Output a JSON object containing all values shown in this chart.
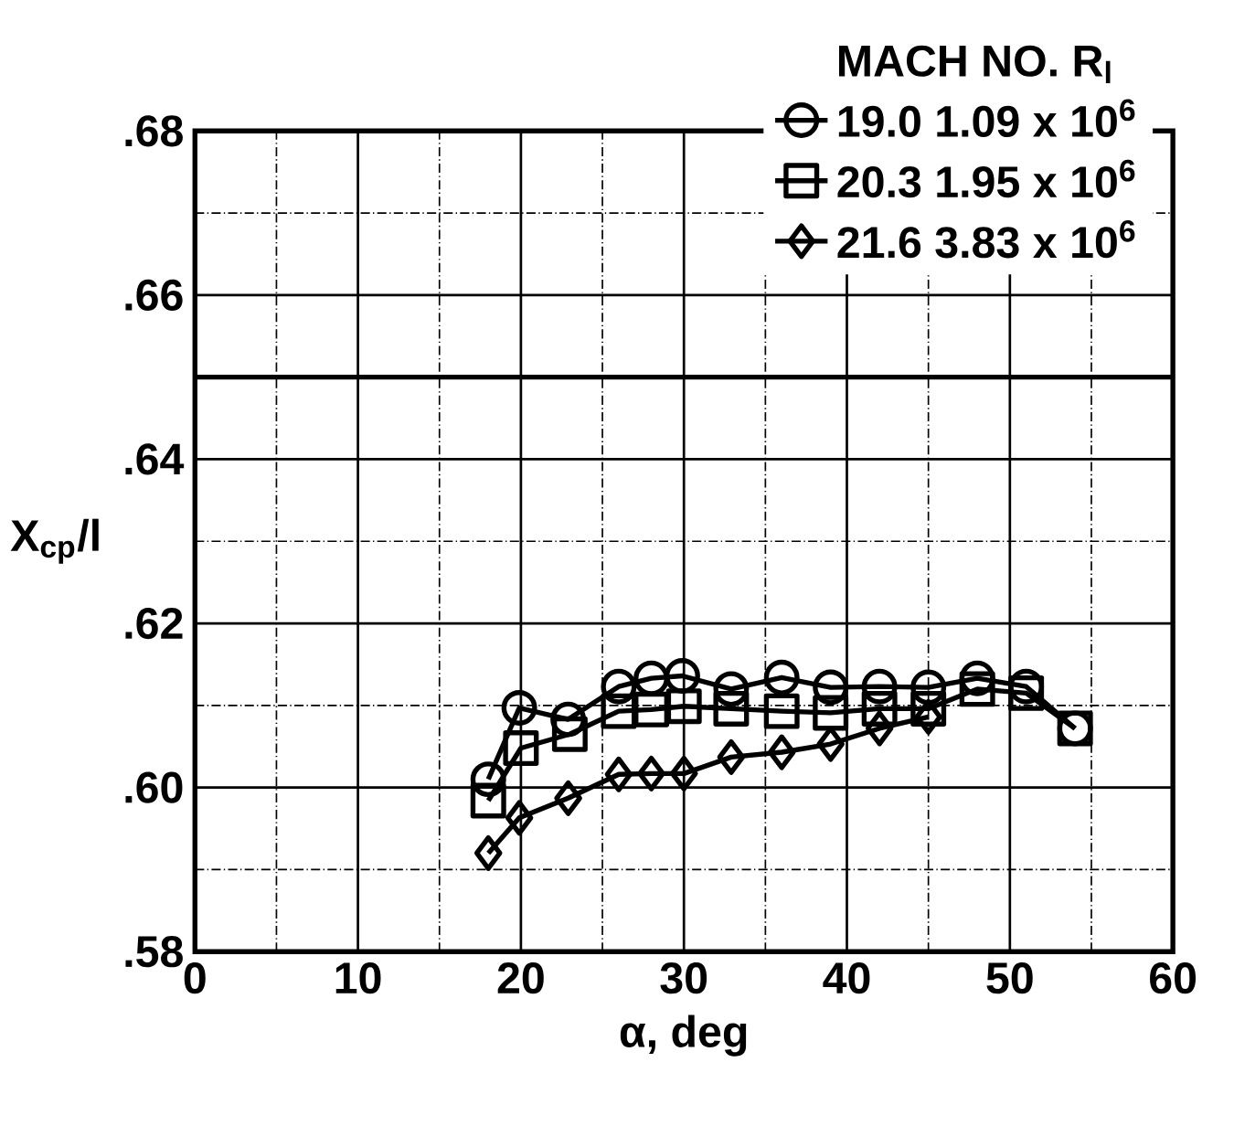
{
  "chart_data": {
    "type": "line",
    "xlabel": "α, deg",
    "ylabel": "X$_{cp}$/l",
    "legend_title": "MACH NO.      R$_{l}$",
    "xlim": [
      0,
      60
    ],
    "xticks": [
      0,
      10,
      20,
      30,
      40,
      50,
      60
    ],
    "ylim": [
      0.58,
      0.68
    ],
    "yticks": [
      {
        "value": 0.58,
        "label": ".58"
      },
      {
        "value": 0.6,
        "label": ".60"
      },
      {
        "value": 0.62,
        "label": ".62"
      },
      {
        "value": 0.64,
        "label": ".64"
      },
      {
        "value": 0.66,
        "label": ".66"
      },
      {
        "value": 0.68,
        "label": ".68"
      }
    ],
    "grid": true,
    "legend": "top right",
    "line_style": "solid",
    "ref_lines": [
      {
        "axis": "y",
        "value": 0.65,
        "color": "#000000"
      }
    ],
    "series": [
      {
        "name": "19.0      1.09 x 10$^{6}$",
        "color": "#000000",
        "marker": "circle",
        "x": [
          18,
          19.9,
          22.9,
          26,
          28,
          29.9,
          32.9,
          36,
          39,
          42,
          45,
          48,
          51,
          54
        ],
        "values": [
          0.601,
          0.6097,
          0.6083,
          0.6123,
          0.6133,
          0.6136,
          0.612,
          0.6134,
          0.6122,
          0.6123,
          0.6122,
          0.6133,
          0.6123,
          0.6072
        ]
      },
      {
        "name": "20.3      1.95 x 10$^{6}$",
        "color": "#000000",
        "marker": "square",
        "x": [
          18,
          20,
          23,
          26,
          28,
          30,
          32.9,
          36,
          39,
          42,
          45,
          48,
          51,
          54
        ],
        "values": [
          0.5984,
          0.6048,
          0.6065,
          0.6093,
          0.6095,
          0.6099,
          0.6096,
          0.6093,
          0.6091,
          0.6096,
          0.6096,
          0.612,
          0.6115,
          0.6072
        ]
      },
      {
        "name": "21.6      3.83 x 10$^{6}$",
        "color": "#000000",
        "marker": "diamond",
        "x": [
          18,
          19.9,
          22.9,
          26,
          28,
          30,
          32.9,
          36,
          39,
          42,
          45
        ],
        "values": [
          0.592,
          0.5963,
          0.5987,
          0.6016,
          0.6017,
          0.6017,
          0.6037,
          0.6043,
          0.6053,
          0.6072,
          0.6086
        ]
      }
    ]
  }
}
